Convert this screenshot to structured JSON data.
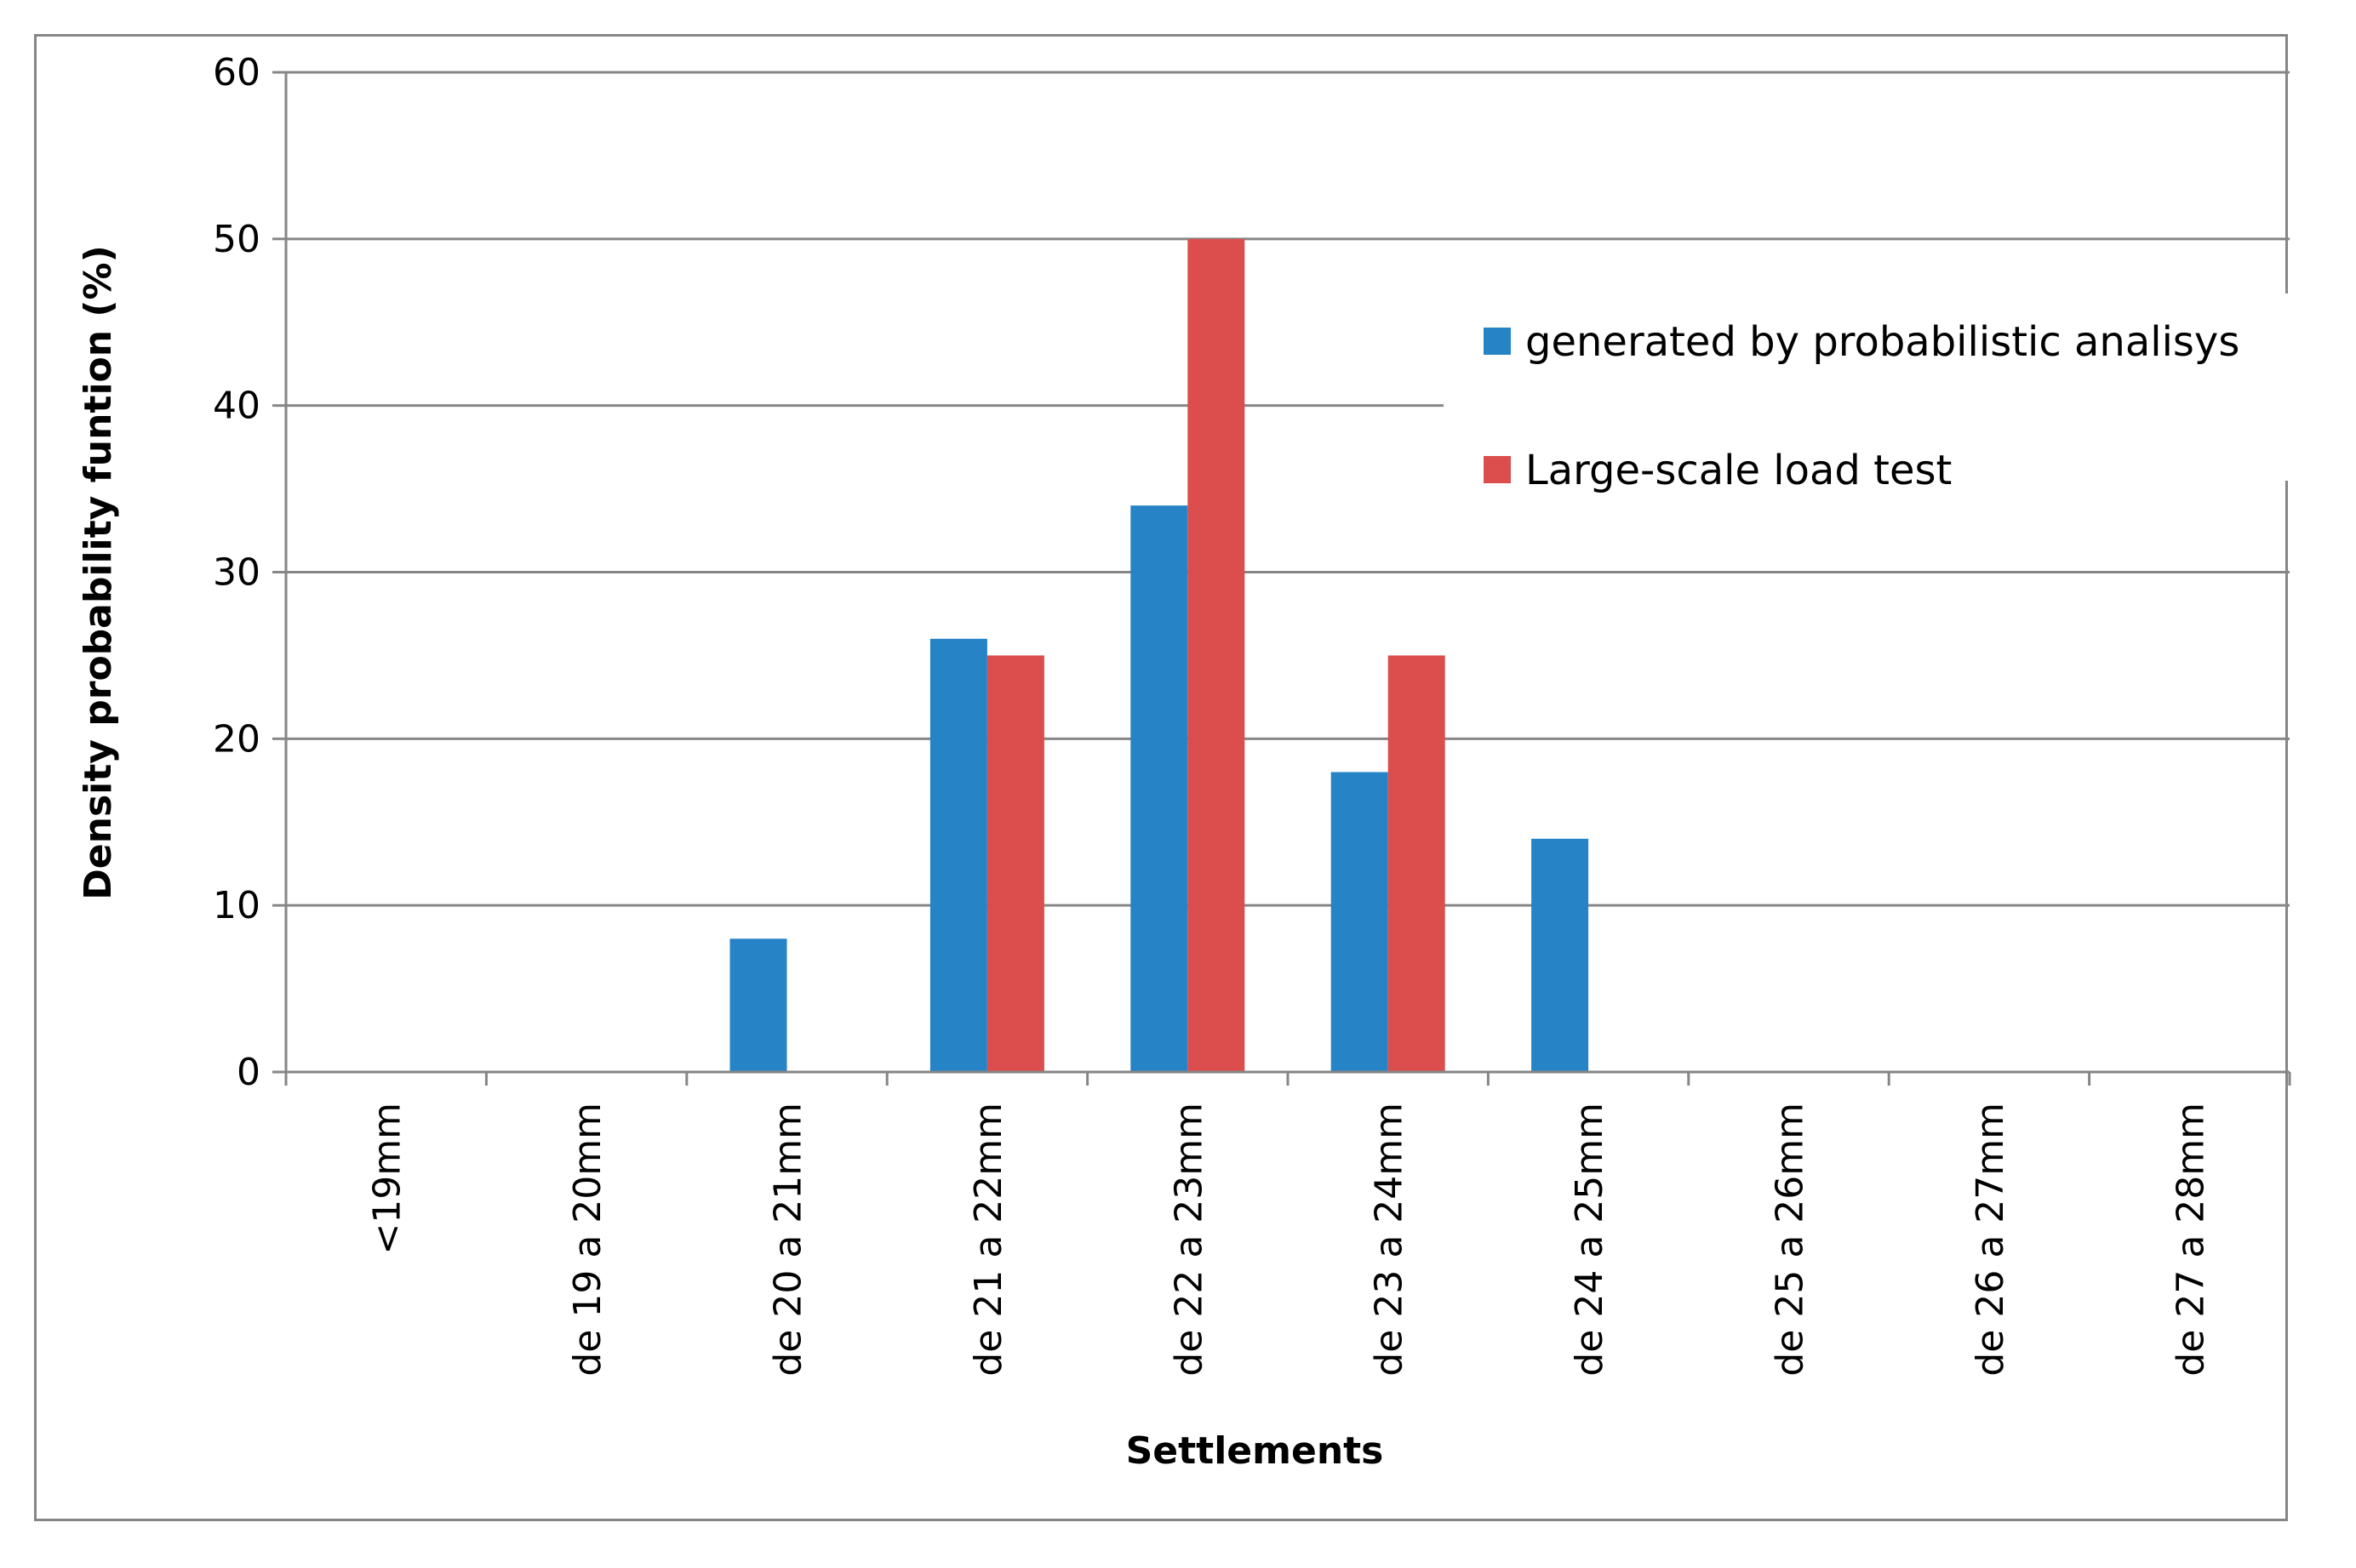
{
  "chart_data": {
    "type": "bar",
    "title": "",
    "xlabel": "Settlements",
    "ylabel": "Density probability funtion (%)",
    "ylim": [
      0,
      60
    ],
    "yticks": [
      0,
      10,
      20,
      30,
      40,
      50,
      60
    ],
    "grid": "horizontal",
    "legend_position": "top-right",
    "categories": [
      "<19mm",
      "de 19 a 20mm",
      "de 20 a 21mm",
      "de 21 a 22mm",
      "de 22 a 23mm",
      "de 23 a 24mm",
      "de 24 a 25mm",
      "de 25 a 26mm",
      "de 26 a 27mm",
      "de 27 a 28mm"
    ],
    "series": [
      {
        "name": "generated by probabilistic analisys",
        "color": "#2683C6",
        "values": [
          0,
          0,
          8,
          26,
          34,
          18,
          14,
          0,
          0,
          0
        ]
      },
      {
        "name": "Large-scale load test",
        "color": "#DC4E4E",
        "values": [
          0,
          0,
          0,
          25,
          50,
          25,
          0,
          0,
          0,
          0
        ]
      }
    ]
  }
}
